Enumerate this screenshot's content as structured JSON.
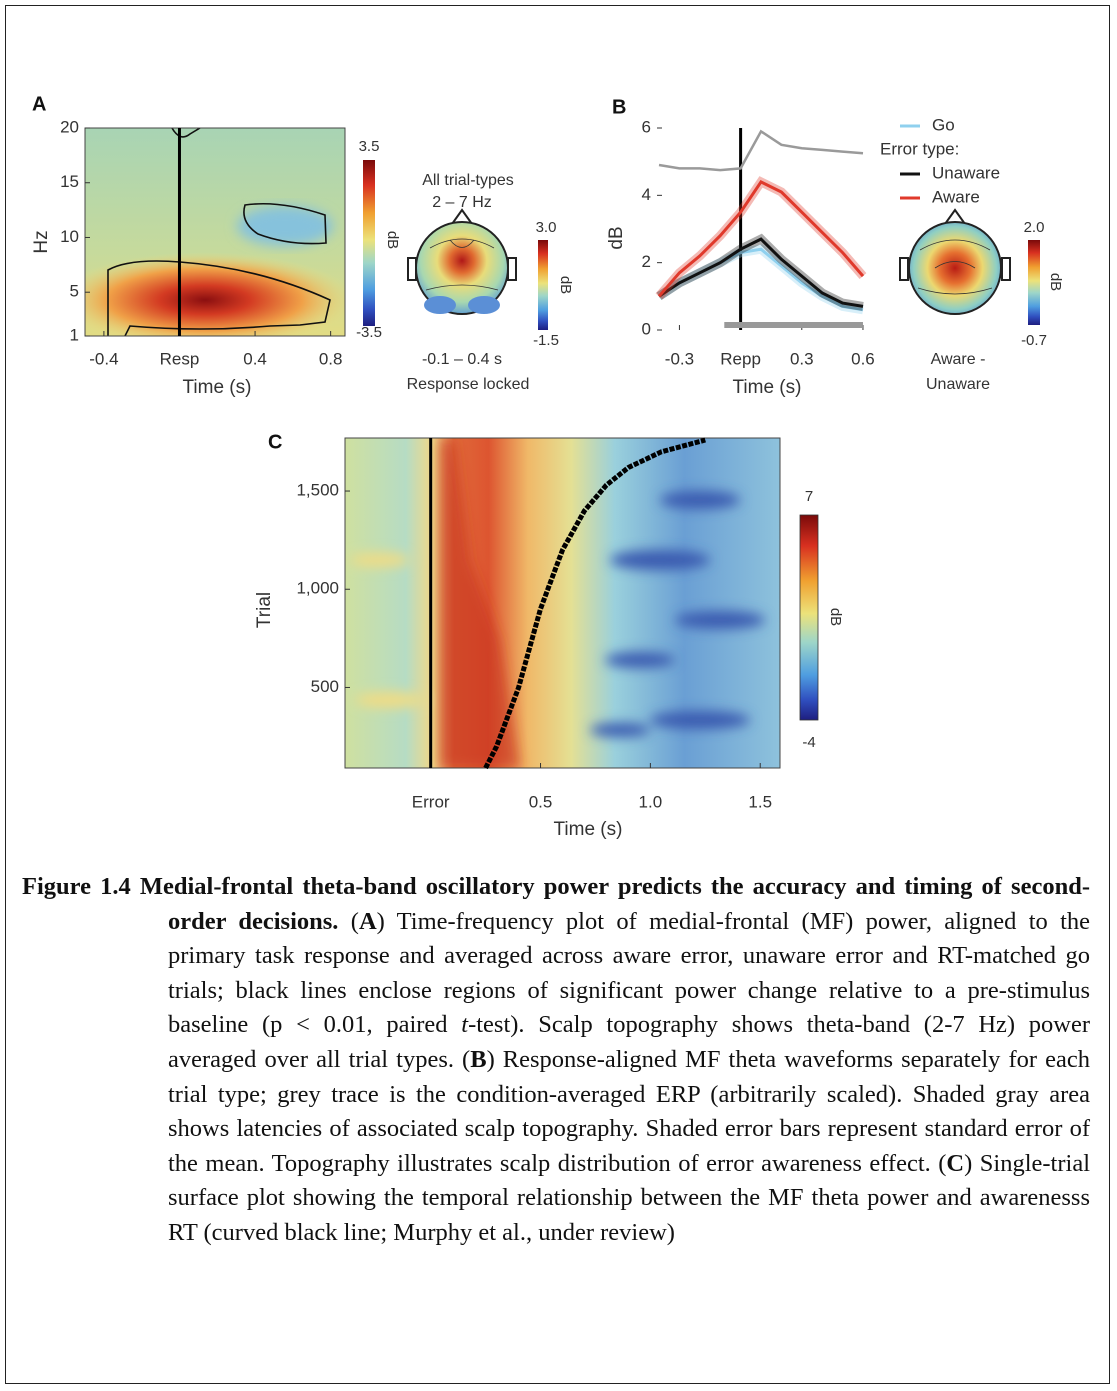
{
  "chart_data": [
    {
      "type": "heatmap",
      "label": "A",
      "xlabel": "Time (s)",
      "ylabel": "Hz",
      "xlim": [
        -0.5,
        0.876
      ],
      "xticks": [
        -0.4,
        {
          "value": 0,
          "label": "Resp"
        },
        0.4,
        0.8
      ],
      "ylim": [
        1,
        20
      ],
      "yticks": [
        1,
        5,
        10,
        15,
        20
      ],
      "colorbar": {
        "label": "dB",
        "ticks": [
          3.5,
          -3.5
        ]
      }
    },
    {
      "type": "topography",
      "title": "All trial-types",
      "subtitle": "2 – 7 Hz",
      "caption": [
        "-0.1 – 0.4 s",
        "Response locked"
      ],
      "colorbar": {
        "label": "dB",
        "ticks": [
          {
            "value": 3,
            "label": "3.0"
          },
          -1.5
        ]
      }
    },
    {
      "type": "line",
      "label": "B",
      "xlabel": "Time (s)",
      "ylabel": "dB",
      "xlim": [
        -0.41,
        0.61
      ],
      "xticks": [
        -0.3,
        {
          "value": 0,
          "label": "Repp"
        },
        0.3,
        0.6
      ],
      "ylim": [
        0,
        6
      ],
      "yticks": [
        0,
        2,
        4,
        6
      ],
      "x": [
        -0.4,
        -0.3,
        -0.2,
        -0.1,
        0,
        0.1,
        0.2,
        0.3,
        0.4,
        0.5,
        0.6
      ],
      "legend_title": "Error type:",
      "series": [
        {
          "color": "#9a9a9a",
          "values": [
            4.9,
            4.8,
            4.8,
            4.75,
            4.8,
            5.9,
            5.5,
            5.4,
            5.35,
            5.3,
            5.25
          ]
        },
        {
          "name": "Go",
          "color": "#8fd0ee",
          "values": [
            1.0,
            1.4,
            1.7,
            2.0,
            2.3,
            2.4,
            1.9,
            1.4,
            1.0,
            0.7,
            0.6
          ]
        },
        {
          "name": "Unaware",
          "color": "#111111",
          "values": [
            1.0,
            1.4,
            1.7,
            2.0,
            2.4,
            2.7,
            2.1,
            1.6,
            1.1,
            0.8,
            0.7
          ]
        },
        {
          "name": "Aware",
          "color": "#e0392b",
          "values": [
            1.0,
            1.7,
            2.2,
            2.8,
            3.5,
            4.4,
            4.1,
            3.5,
            2.9,
            2.3,
            1.6
          ]
        }
      ],
      "shaded_span": [
        -0.08,
        0.6
      ]
    },
    {
      "type": "topography",
      "caption": [
        "Aware -",
        "Unaware"
      ],
      "colorbar": {
        "label": "dB",
        "ticks": [
          {
            "value": 2,
            "label": "2.0"
          },
          -0.7
        ]
      }
    },
    {
      "type": "heatmap",
      "label": "C",
      "xlabel": "Time (s)",
      "ylabel": "Trial",
      "xlim": [
        -0.39,
        1.59
      ],
      "xticks": [
        {
          "value": 0,
          "label": "Error"
        },
        0.5,
        {
          "value": 1,
          "label": "1.0"
        },
        1.5
      ],
      "ylim": [
        90,
        1770
      ],
      "yticks": [
        500,
        {
          "value": 1000,
          "label": "1,000"
        },
        {
          "value": 1500,
          "label": "1,500"
        }
      ],
      "curve": {
        "x": [
          0.25,
          0.3,
          0.35,
          0.4,
          0.45,
          0.5,
          0.55,
          0.6,
          0.7,
          0.8,
          0.9,
          1.05,
          1.25
        ],
        "values": [
          90,
          200,
          350,
          500,
          700,
          900,
          1050,
          1200,
          1400,
          1530,
          1620,
          1700,
          1760
        ]
      },
      "colorbar": {
        "label": "dB",
        "ticks": [
          7,
          -4
        ]
      }
    }
  ],
  "caption": {
    "label": "Figure 1.4",
    "title": "Medial-frontal theta-band oscillatory power predicts the accuracy and timing of second-order decisions.",
    "parts": [
      "(",
      "A",
      ") Time-frequency plot of medial-frontal (MF) power, aligned to the primary task response and averaged across aware error, unaware error and RT-matched go trials; black lines enclose regions of significant power change relative to a pre-stimulus baseline (p < 0.01, paired ",
      "t",
      "-test). Scalp topography shows theta-band (2-7 Hz) power averaged over all trial types. (",
      "B",
      ") Response-aligned MF theta waveforms separately for each trial type; grey trace is the condition-averaged ERP (arbitrarily scaled). Shaded gray area shows latencies of associated scalp topography. Shaded error bars represent standard error of the mean. Topography illustrates scalp distribution of error awareness effect. (",
      "C",
      ") Single-trial surface plot showing the temporal relationship between the MF theta power and awarenesss RT (curved black line; Murphy et al., under review)"
    ]
  }
}
